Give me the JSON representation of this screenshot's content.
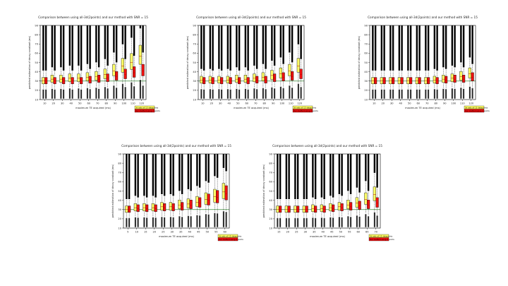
{
  "common": {
    "title": "Comparison between using all-3d(2points) and our method with SNR = 15",
    "xlabel": "maximum TE acquired (ms)",
    "ylabel": "predicted estimation of decay constant (ms)",
    "legend": [
      "3d sets all 15 datapoints",
      "Our method using 2 points"
    ],
    "yticks": [
      10,
      20,
      30,
      40,
      50,
      60,
      70,
      80,
      90
    ],
    "colors": {
      "series_a": "#ffff66",
      "series_b": "#ee1111",
      "ref_line": "#3a8a3a",
      "outlier": "#000000"
    }
  },
  "chart_data": [
    {
      "type": "box",
      "ylim": [
        10,
        90
      ],
      "ref": 30,
      "categories": [
        "10",
        "20",
        "30",
        "40",
        "50",
        "60",
        "70",
        "80",
        "90",
        "100",
        "110",
        "120"
      ],
      "series": [
        {
          "name": "3d sets all 15 datapoints",
          "medians": [
            30,
            32,
            32,
            33,
            33,
            34,
            35,
            37,
            41,
            46,
            50,
            57
          ]
        },
        {
          "name": "Our method using 2 points",
          "medians": [
            30,
            30,
            30,
            30,
            30,
            31,
            32,
            33,
            35,
            37,
            39,
            41
          ]
        }
      ]
    },
    {
      "type": "box",
      "ylim": [
        10,
        90
      ],
      "ref": 30,
      "categories": [
        "10",
        "20",
        "30",
        "40",
        "50",
        "60",
        "70",
        "80",
        "90",
        "100",
        "110",
        "120"
      ],
      "series": [
        {
          "name": "3d sets all 15 datapoints",
          "medians": [
            31,
            31,
            31,
            31,
            32,
            32,
            33,
            34,
            36,
            38,
            41,
            46
          ]
        },
        {
          "name": "Our method using 2 points",
          "medians": [
            30,
            30,
            30,
            30,
            30,
            30,
            31,
            31,
            33,
            34,
            35,
            37
          ]
        }
      ]
    },
    {
      "type": "box",
      "ylim": [
        10,
        90
      ],
      "ref": 30,
      "categories": [
        "10",
        "20",
        "30",
        "40",
        "50",
        "60",
        "70",
        "80",
        "90",
        "100",
        "110",
        "120"
      ],
      "series": [
        {
          "name": "3d sets all 15 datapoints",
          "medians": [
            30,
            30,
            30,
            30,
            30,
            30,
            30,
            31,
            32,
            33,
            35,
            38
          ]
        },
        {
          "name": "Our method using 2 points",
          "medians": [
            30,
            30,
            30,
            30,
            30,
            30,
            30,
            30,
            31,
            32,
            32,
            34
          ]
        }
      ]
    },
    {
      "type": "box",
      "ylim": [
        10,
        90
      ],
      "ref": 30,
      "categories": [
        "5",
        "10",
        "15",
        "20",
        "25",
        "30",
        "35",
        "40",
        "45",
        "50",
        "55",
        "60"
      ],
      "series": [
        {
          "name": "3d sets all 15 datapoints",
          "medians": [
            30,
            32,
            32,
            32,
            33,
            33,
            35,
            36,
            38,
            41,
            44,
            49
          ]
        },
        {
          "name": "Our method using 2 points",
          "medians": [
            30,
            31,
            31,
            31,
            32,
            32,
            33,
            35,
            37,
            40,
            43,
            47
          ]
        }
      ]
    },
    {
      "type": "box",
      "ylim": [
        10,
        90
      ],
      "ref": 30,
      "categories": [
        "15",
        "20",
        "25",
        "30",
        "35",
        "40",
        "45",
        "50",
        "55",
        "60",
        "65",
        "70"
      ],
      "series": [
        {
          "name": "3d sets all 15 datapoints",
          "medians": [
            30,
            30,
            30,
            30,
            31,
            31,
            32,
            33,
            35,
            37,
            41,
            46
          ]
        },
        {
          "name": "Our method using 2 points",
          "medians": [
            30,
            30,
            30,
            30,
            30,
            30,
            31,
            32,
            33,
            34,
            35,
            37
          ]
        }
      ]
    }
  ]
}
